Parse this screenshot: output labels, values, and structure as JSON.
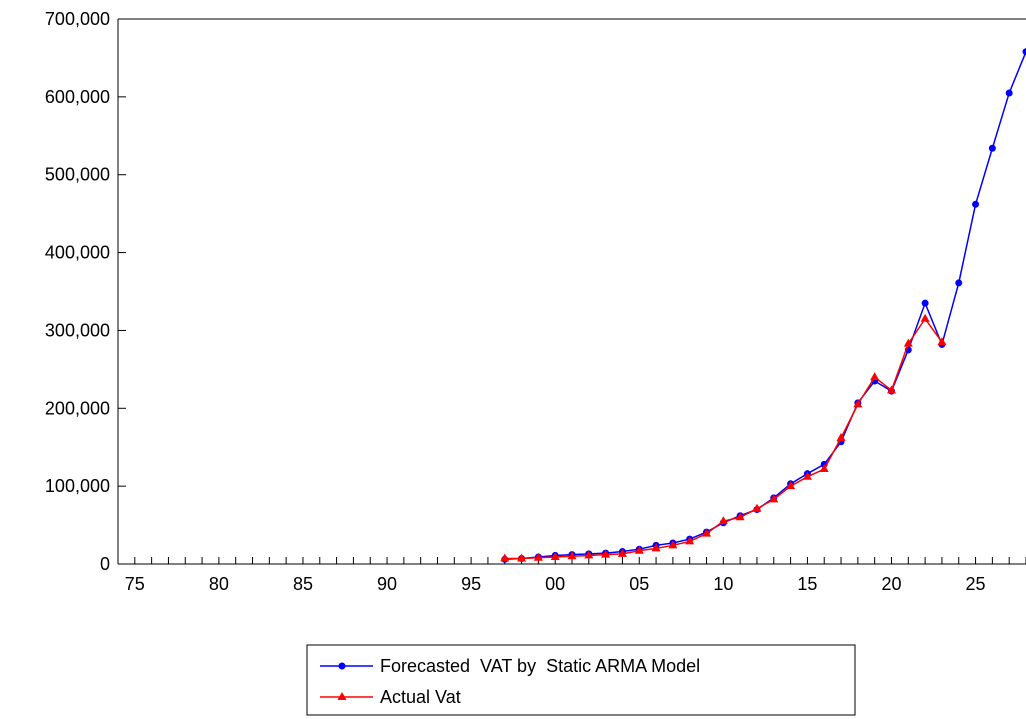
{
  "chart_data": {
    "type": "line",
    "title": "",
    "xlabel": "",
    "ylabel": "",
    "x_axis": {
      "range": [
        1974,
        2028
      ],
      "tick_years": [
        1975,
        1980,
        1985,
        1990,
        1995,
        2000,
        2005,
        2010,
        2015,
        2020,
        2025
      ],
      "tick_labels": [
        "75",
        "80",
        "85",
        "90",
        "95",
        "00",
        "05",
        "10",
        "15",
        "20",
        "25"
      ]
    },
    "y_axis": {
      "range": [
        0,
        700000
      ],
      "ticks": [
        0,
        100000,
        200000,
        300000,
        400000,
        500000,
        600000,
        700000
      ],
      "tick_labels": [
        "0",
        "100,000",
        "200,000",
        "300,000",
        "400,000",
        "500,000",
        "600,000",
        "700,000"
      ]
    },
    "grid": false,
    "legend_position": "bottom-center",
    "series": [
      {
        "name": "Forecasted  VAT by  Static ARMA Model",
        "color": "#0000ff",
        "marker": "circle",
        "x": [
          1997,
          1998,
          1999,
          2000,
          2001,
          2002,
          2003,
          2004,
          2005,
          2006,
          2007,
          2008,
          2009,
          2010,
          2011,
          2012,
          2013,
          2014,
          2015,
          2016,
          2017,
          2018,
          2019,
          2020,
          2021,
          2022,
          2023,
          2024,
          2025,
          2026,
          2027,
          2028
        ],
        "values": [
          6000,
          7000,
          9000,
          11000,
          12000,
          13000,
          14000,
          16000,
          19000,
          24000,
          27000,
          32000,
          41000,
          53000,
          62000,
          70000,
          85000,
          103000,
          116000,
          128000,
          157000,
          207000,
          235000,
          222000,
          275000,
          335000,
          282000,
          361000,
          462000,
          534000,
          605000,
          658000
        ]
      },
      {
        "name": "Actual Vat",
        "color": "#ff0000",
        "marker": "triangle",
        "x": [
          1997,
          1998,
          1999,
          2000,
          2001,
          2002,
          2003,
          2004,
          2005,
          2006,
          2007,
          2008,
          2009,
          2010,
          2011,
          2012,
          2013,
          2014,
          2015,
          2016,
          2017,
          2018,
          2019,
          2020,
          2021,
          2022,
          2023
        ],
        "values": [
          7000,
          7000,
          8000,
          9000,
          10000,
          11000,
          12000,
          13000,
          17000,
          20000,
          24000,
          29000,
          39000,
          55000,
          60000,
          71000,
          83000,
          100000,
          112000,
          122000,
          162000,
          205000,
          240000,
          223000,
          283000,
          315000,
          285000
        ]
      }
    ]
  }
}
